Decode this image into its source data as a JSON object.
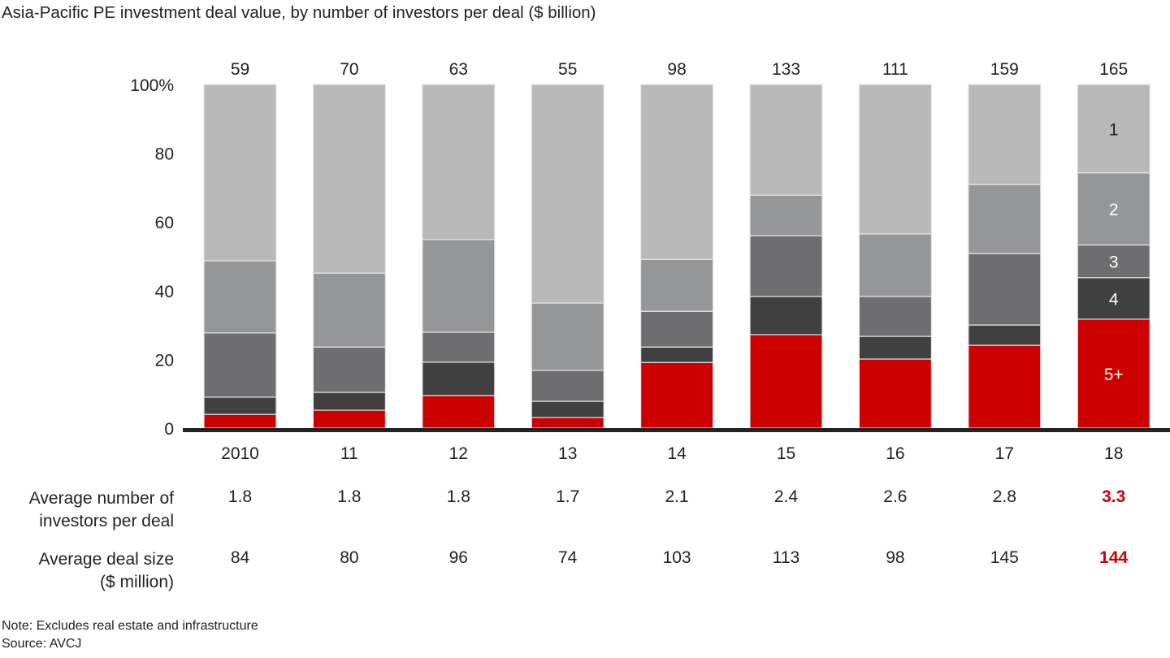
{
  "chart_data": {
    "type": "bar",
    "stacked": true,
    "normalized_percent": true,
    "title": "Asia-Pacific PE investment deal value, by number of investors per deal ($ billion)",
    "xlabel": "",
    "ylabel": "",
    "ylim": [
      0,
      100
    ],
    "yticks": [
      0,
      20,
      40,
      60,
      80,
      100
    ],
    "ytick_labels": [
      "0",
      "20",
      "40",
      "60",
      "80",
      "100%"
    ],
    "grid": false,
    "categories": [
      "2010",
      "11",
      "12",
      "13",
      "14",
      "15",
      "16",
      "17",
      "18"
    ],
    "totals": [
      "59",
      "70",
      "63",
      "55",
      "98",
      "133",
      "111",
      "159",
      "165"
    ],
    "series": [
      {
        "name": "5+",
        "color": "#cc0000",
        "values": [
          4.0,
          5.2,
          9.5,
          3.1,
          19.1,
          27.2,
          20.1,
          24.1,
          31.7
        ]
      },
      {
        "name": "4",
        "color": "#404040",
        "values": [
          5.0,
          5.2,
          9.7,
          4.7,
          4.5,
          11.1,
          6.6,
          5.9,
          12.1
        ]
      },
      {
        "name": "3",
        "color": "#6e6e70",
        "values": [
          18.7,
          13.2,
          8.7,
          9.0,
          10.4,
          17.7,
          11.6,
          20.8,
          9.5
        ]
      },
      {
        "name": "2",
        "color": "#959698",
        "values": [
          21.0,
          21.5,
          27.0,
          19.6,
          15.1,
          11.8,
          18.2,
          20.1,
          21.0
        ]
      },
      {
        "name": "1",
        "color": "#b9b9b9",
        "values": [
          51.3,
          54.9,
          45.1,
          63.6,
          50.9,
          32.2,
          43.5,
          29.1,
          25.7
        ]
      }
    ],
    "legend": "inline-labels-on-last-bar",
    "table": {
      "rows": [
        {
          "label_lines": [
            "Average number of",
            "investors per deal"
          ],
          "values": [
            "1.8",
            "1.8",
            "1.8",
            "1.7",
            "2.1",
            "2.4",
            "2.6",
            "2.8",
            "3.3"
          ],
          "highlight_last": true
        },
        {
          "label_lines": [
            "Average deal size",
            "($ million)"
          ],
          "values": [
            "84",
            "80",
            "96",
            "74",
            "103",
            "113",
            "98",
            "145",
            "144"
          ],
          "highlight_last": true
        }
      ]
    },
    "notes": [
      "Note: Excludes real estate and infrastructure",
      "Source: AVCJ"
    ]
  },
  "highlight_color": "#cc0000"
}
